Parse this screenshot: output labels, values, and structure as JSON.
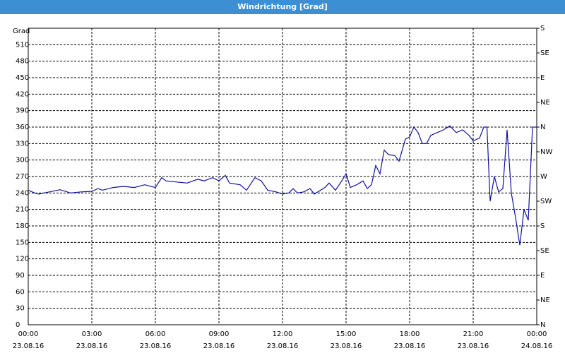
{
  "window_title": "Windrichtung [Grad]",
  "chart_data": {
    "type": "line",
    "y_label": "Grad",
    "x": [
      0,
      0.3,
      0.5,
      1,
      1.5,
      2,
      2.5,
      3,
      3.3,
      3.5,
      4,
      4.5,
      5,
      5.5,
      6,
      6.3,
      6.5,
      7,
      7.5,
      8,
      8.3,
      8.7,
      9,
      9.3,
      9.5,
      10,
      10.3,
      10.7,
      11,
      11.3,
      11.7,
      12,
      12.3,
      12.5,
      12.7,
      13,
      13.3,
      13.5,
      14,
      14.2,
      14.5,
      14.8,
      15,
      15.2,
      15.5,
      15.8,
      16,
      16.2,
      16.4,
      16.6,
      16.8,
      17,
      17.3,
      17.5,
      17.8,
      18,
      18.2,
      18.4,
      18.6,
      18.8,
      19,
      19.3,
      19.6,
      19.9,
      20.2,
      20.5,
      20.8,
      21,
      21.3,
      21.5,
      21.65,
      21.8,
      22,
      22.2,
      22.4,
      22.6,
      22.8,
      23,
      23.2,
      23.4,
      23.6,
      23.8,
      24
    ],
    "series": [
      {
        "color": "#1010a0",
        "values": [
          245,
          240,
          238,
          242,
          246,
          240,
          242,
          243,
          248,
          245,
          250,
          252,
          250,
          255,
          250,
          268,
          262,
          260,
          258,
          265,
          262,
          268,
          262,
          272,
          258,
          255,
          245,
          268,
          262,
          245,
          242,
          238,
          240,
          248,
          240,
          242,
          248,
          238,
          250,
          258,
          245,
          262,
          275,
          250,
          255,
          262,
          248,
          255,
          290,
          275,
          318,
          310,
          308,
          298,
          338,
          342,
          360,
          350,
          330,
          330,
          345,
          350,
          355,
          362,
          350,
          355,
          345,
          335,
          340,
          360,
          360,
          225,
          270,
          242,
          248,
          355,
          240,
          195,
          145,
          210,
          190,
          360,
          360
        ]
      }
    ],
    "xlim": [
      0,
      24
    ],
    "xticks": [
      {
        "value": 0,
        "label": "00:00"
      },
      {
        "value": 3,
        "label": "03:00"
      },
      {
        "value": 6,
        "label": "06:00"
      },
      {
        "value": 9,
        "label": "09:00"
      },
      {
        "value": 12,
        "label": "12:00"
      },
      {
        "value": 15,
        "label": "15:00"
      },
      {
        "value": 18,
        "label": "18:00"
      },
      {
        "value": 21,
        "label": "21:00"
      },
      {
        "value": 24,
        "label": "00:00"
      }
    ],
    "xtick_dates": [
      "23.08.16",
      "23.08.16",
      "23.08.16",
      "23.08.16",
      "23.08.16",
      "23.08.16",
      "23.08.16",
      "23.08.16",
      "24.08.16"
    ],
    "ylim": [
      0,
      540
    ],
    "yticks": [
      0,
      30,
      60,
      90,
      120,
      150,
      180,
      210,
      240,
      270,
      300,
      330,
      360,
      390,
      420,
      450,
      480,
      510
    ],
    "y2lim": [
      0,
      540
    ],
    "y2ticks": [
      {
        "value": 0,
        "label": "N"
      },
      {
        "value": 45,
        "label": "NE"
      },
      {
        "value": 90,
        "label": "E"
      },
      {
        "value": 135,
        "label": "SE"
      },
      {
        "value": 180,
        "label": "S"
      },
      {
        "value": 225,
        "label": "SW"
      },
      {
        "value": 270,
        "label": "W"
      },
      {
        "value": 315,
        "label": "NW"
      },
      {
        "value": 360,
        "label": "N"
      },
      {
        "value": 405,
        "label": "NE"
      },
      {
        "value": 450,
        "label": "E"
      },
      {
        "value": 495,
        "label": "SE"
      },
      {
        "value": 540,
        "label": "S"
      }
    ],
    "grid": true
  }
}
